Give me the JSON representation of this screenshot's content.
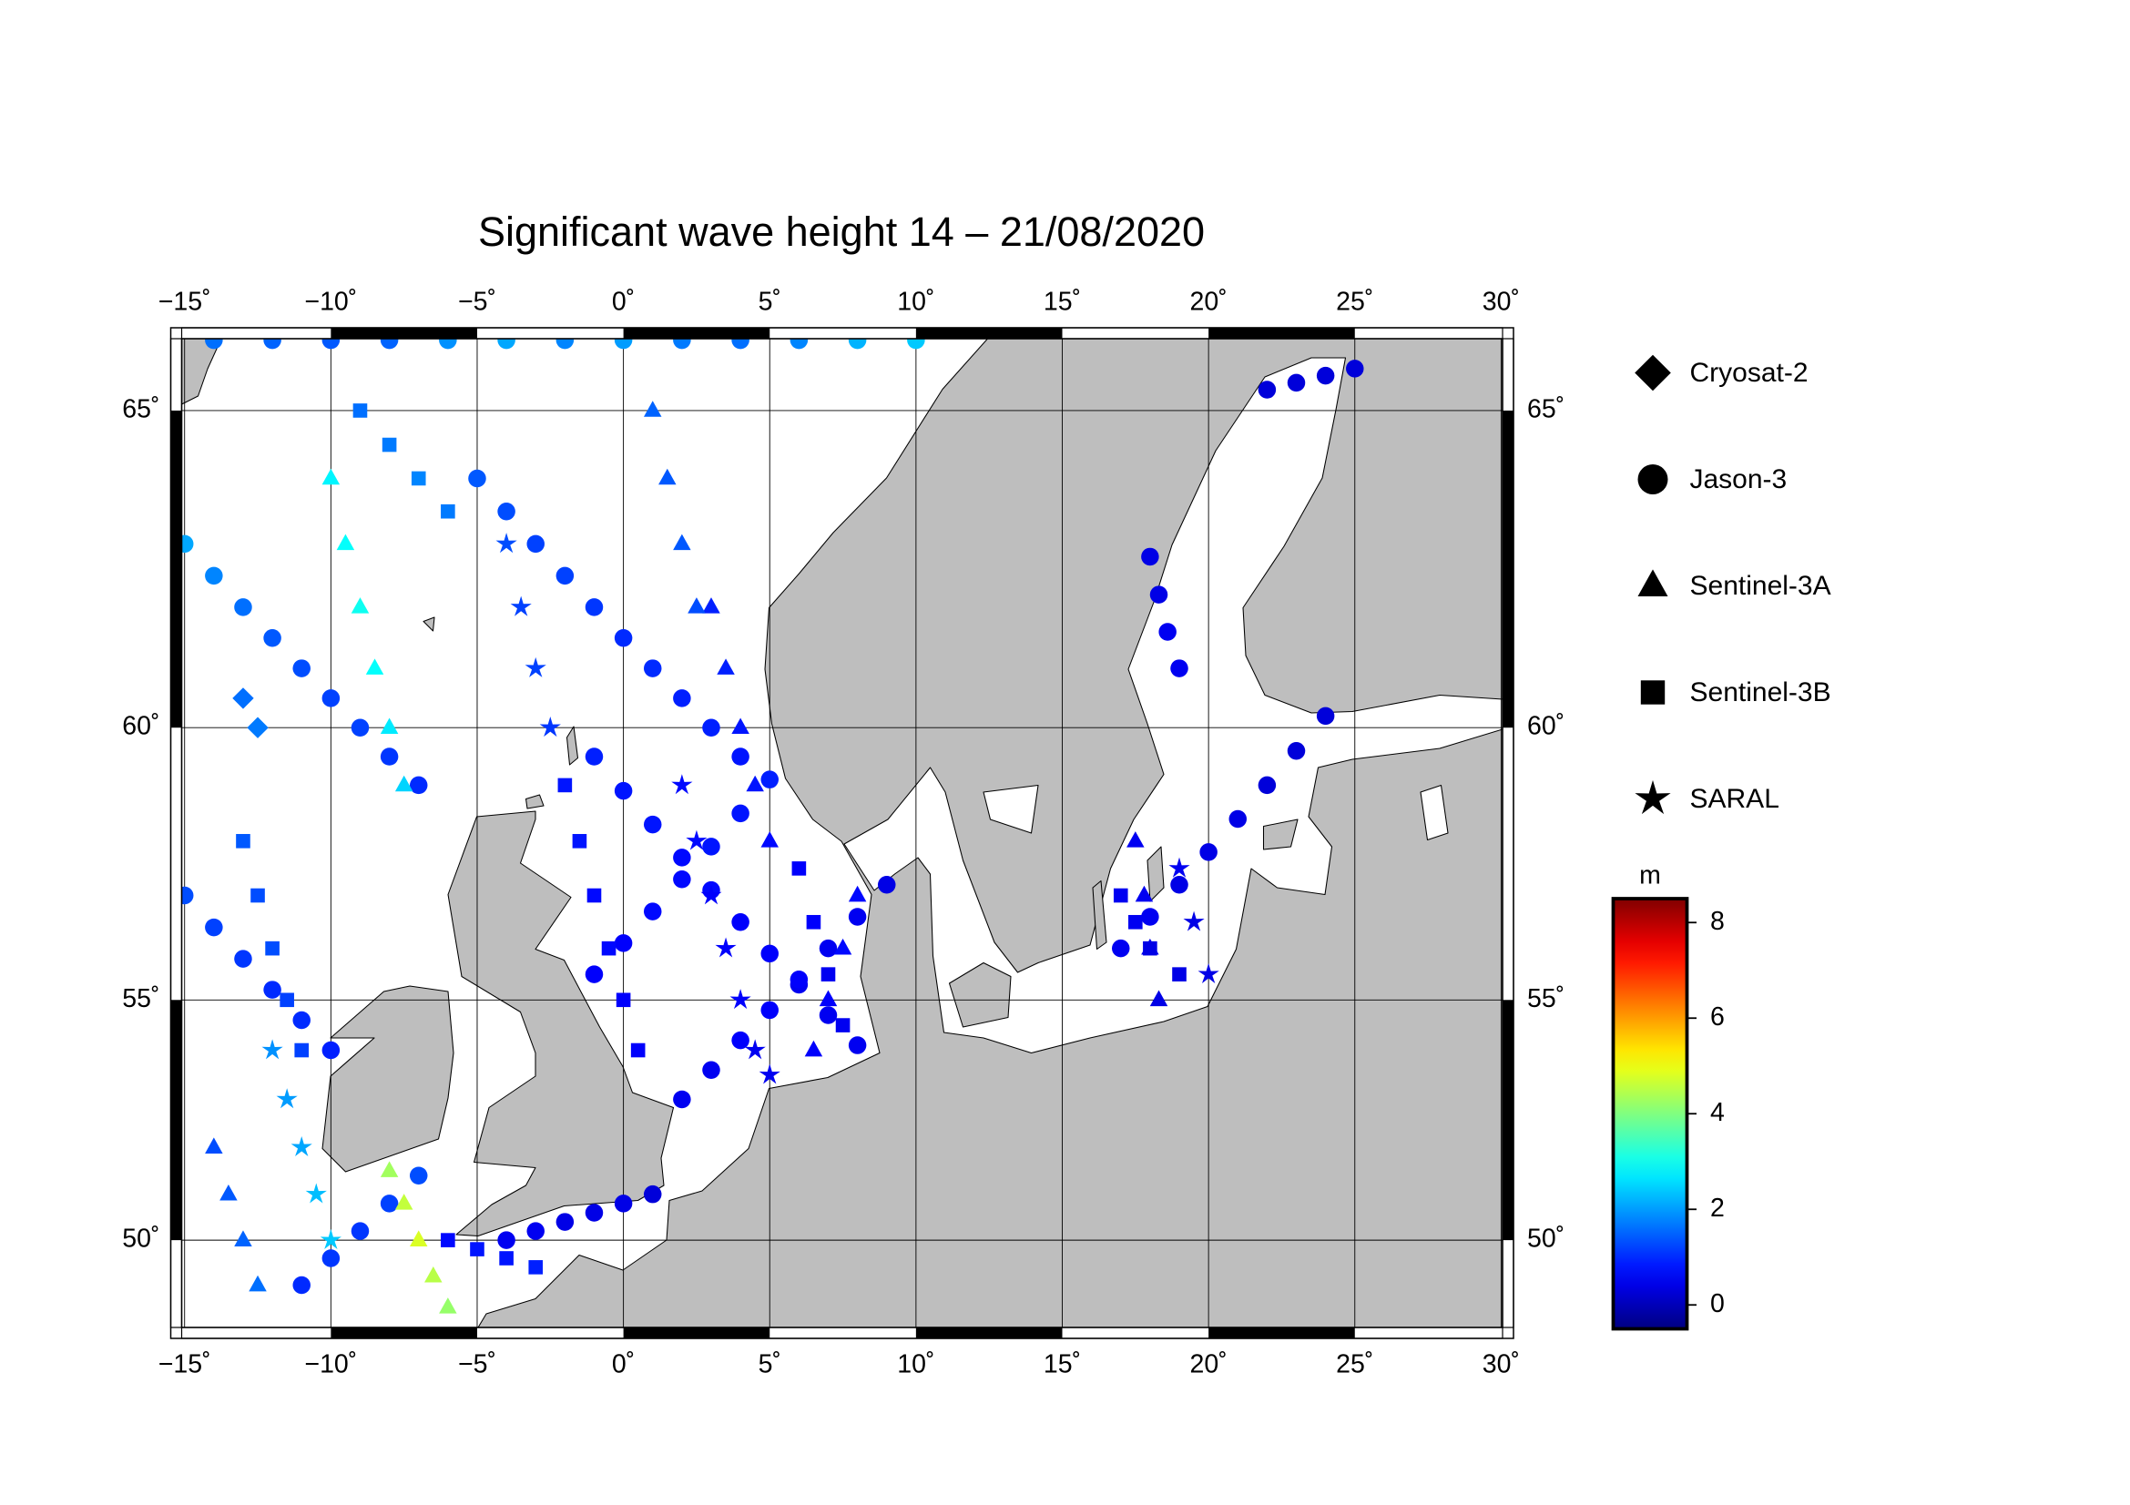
{
  "chart_data": {
    "type": "scatter-map",
    "title": "Significant wave height 14 – 21/08/2020",
    "projection": "mercator",
    "grid": true,
    "xlim": [
      -15.1,
      30.05
    ],
    "ylim": [
      48.04,
      66.02
    ],
    "xticks": [
      {
        "value": -15,
        "label": "−15˚"
      },
      {
        "value": -10,
        "label": "−10˚"
      },
      {
        "value": -5,
        "label": "−5˚"
      },
      {
        "value": 0,
        "label": "0˚"
      },
      {
        "value": 5,
        "label": "5˚"
      },
      {
        "value": 10,
        "label": "10˚"
      },
      {
        "value": 15,
        "label": "15˚"
      },
      {
        "value": 20,
        "label": "20˚"
      },
      {
        "value": 25,
        "label": "25˚"
      },
      {
        "value": 30,
        "label": "30˚"
      }
    ],
    "yticks": [
      {
        "value": 50,
        "label": "50˚"
      },
      {
        "value": 55,
        "label": "55˚"
      },
      {
        "value": 60,
        "label": "60˚"
      },
      {
        "value": 65,
        "label": "65˚"
      }
    ],
    "colorbar": {
      "label": "m",
      "colormap": "jet",
      "lim": [
        -0.5,
        8.5
      ],
      "ticks": [
        0,
        2,
        4,
        6,
        8
      ]
    },
    "series": [
      {
        "name": "Cryosat-2",
        "marker": "diamond",
        "x": [
          -13,
          -12.5
        ],
        "y": [
          60.5,
          60
        ],
        "values": [
          1.6,
          1.7
        ]
      },
      {
        "name": "Jason-3",
        "marker": "circle",
        "x": [
          -14,
          -12,
          -10,
          -8,
          -6,
          -4,
          -2,
          0,
          2,
          4,
          6,
          8,
          10,
          -15,
          -14,
          -13,
          -12,
          -11,
          -10,
          -9,
          -8,
          -7,
          -5,
          -4,
          -3,
          -2,
          -1,
          0,
          1,
          2,
          3,
          4,
          -15,
          -14,
          -13,
          -12,
          -11,
          -10,
          -1,
          0,
          1,
          2,
          3,
          4,
          5,
          6,
          7,
          8,
          -1,
          0,
          1,
          2,
          3,
          4,
          5,
          2,
          3,
          4,
          5,
          6,
          7,
          8,
          9,
          17,
          18,
          19,
          20,
          21,
          22,
          23,
          24,
          18,
          18.3,
          18.6,
          19,
          22,
          23,
          24,
          25,
          -4,
          -3,
          -2,
          -1,
          0,
          1,
          -11,
          -10,
          -9,
          -8,
          -7
        ],
        "y": [
          66,
          66,
          66,
          66,
          66,
          66,
          66,
          66,
          66,
          66,
          66,
          66,
          66,
          63,
          62.5,
          62,
          61.5,
          61,
          60.5,
          60,
          59.5,
          59,
          64,
          63.5,
          63,
          62.5,
          62,
          61.5,
          61,
          60.5,
          60,
          59.5,
          57,
          56.4,
          55.8,
          55.2,
          54.6,
          54,
          59.5,
          58.9,
          58.3,
          57.7,
          57.1,
          56.5,
          55.9,
          55.3,
          54.7,
          54.1,
          55.5,
          56.1,
          56.7,
          57.3,
          57.9,
          58.5,
          59.1,
          53,
          53.6,
          54.2,
          54.8,
          55.4,
          56,
          56.6,
          57.2,
          56,
          56.6,
          57.2,
          57.8,
          58.4,
          59,
          59.6,
          60.2,
          62.8,
          62.2,
          61.6,
          61,
          65.3,
          65.4,
          65.5,
          65.6,
          50,
          50.2,
          50.4,
          50.6,
          50.8,
          51,
          49,
          49.6,
          50.2,
          50.8,
          51.4
        ],
        "values": [
          1.6,
          1.5,
          1.4,
          1.5,
          1.9,
          2.1,
          1.8,
          2.0,
          1.7,
          1.6,
          1.8,
          2.2,
          2.4,
          2.1,
          1.8,
          1.6,
          1.4,
          1.3,
          1.2,
          1.2,
          1.1,
          1.0,
          1.4,
          1.3,
          1.2,
          1.2,
          1.1,
          1.0,
          1.0,
          0.9,
          0.9,
          0.8,
          1.3,
          1.2,
          1.1,
          1.0,
          1.0,
          0.9,
          0.9,
          0.8,
          0.8,
          0.7,
          0.7,
          0.6,
          0.6,
          0.5,
          0.5,
          0.5,
          0.6,
          0.6,
          0.7,
          0.7,
          0.8,
          0.8,
          0.9,
          0.5,
          0.5,
          0.6,
          0.6,
          0.6,
          0.5,
          0.5,
          0.4,
          0.5,
          0.5,
          0.4,
          0.4,
          0.4,
          0.3,
          0.3,
          0.3,
          0.4,
          0.4,
          0.5,
          0.5,
          0.3,
          0.3,
          0.3,
          0.3,
          0.5,
          0.5,
          0.4,
          0.4,
          0.4,
          0.3,
          1.0,
          1.1,
          1.1,
          1.2,
          1.3
        ]
      },
      {
        "name": "Sentinel-3A",
        "marker": "triangle",
        "x": [
          -10,
          -9.5,
          -9,
          -8.5,
          -8,
          -7.5,
          -8,
          -7.5,
          -7,
          -6.5,
          -6,
          3,
          3.5,
          4,
          4.5,
          5,
          8,
          7.5,
          7,
          6.5,
          -14,
          -13.5,
          -13,
          -12.5,
          17.5,
          17.8,
          18,
          18.3,
          1,
          1.5,
          2,
          2.5
        ],
        "y": [
          64,
          63,
          62,
          61,
          60,
          59,
          51.5,
          50.8,
          50,
          49.2,
          48.5,
          62,
          61,
          60,
          59,
          58,
          57,
          56,
          55,
          54,
          52,
          51,
          50,
          49,
          58,
          57,
          56,
          55,
          65,
          64,
          63,
          62
        ],
        "values": [
          2.8,
          2.9,
          3.0,
          2.9,
          2.7,
          2.5,
          4.3,
          4.6,
          4.8,
          4.5,
          4.2,
          0.9,
          0.9,
          0.8,
          0.8,
          0.7,
          0.7,
          0.7,
          0.6,
          0.6,
          1.3,
          1.4,
          1.5,
          1.6,
          0.5,
          0.5,
          0.5,
          0.4,
          1.5,
          1.4,
          1.4,
          1.3
        ]
      },
      {
        "name": "Sentinel-3B",
        "marker": "square",
        "x": [
          -2,
          -1.5,
          -1,
          -0.5,
          0,
          0.5,
          6,
          6.5,
          7,
          7.5,
          -13,
          -12.5,
          -12,
          -11.5,
          -11,
          -6,
          -5,
          -4,
          -3,
          17,
          17.5,
          18,
          19,
          -9,
          -8,
          -7,
          -6
        ],
        "y": [
          59,
          58,
          57,
          56,
          55,
          54,
          57.5,
          56.5,
          55.5,
          54.5,
          58,
          57,
          56,
          55,
          54,
          50,
          49.8,
          49.6,
          49.4,
          57,
          56.5,
          56,
          55.5,
          65,
          64.5,
          64,
          63.5
        ],
        "values": [
          0.8,
          0.8,
          0.7,
          0.7,
          0.6,
          0.6,
          0.6,
          0.6,
          0.5,
          0.5,
          1.4,
          1.3,
          1.3,
          1.2,
          1.2,
          0.7,
          0.8,
          0.8,
          0.9,
          0.5,
          0.5,
          0.4,
          0.4,
          1.6,
          1.7,
          1.8,
          1.7
        ]
      },
      {
        "name": "SARAL",
        "marker": "star",
        "x": [
          2,
          2.5,
          3,
          3.5,
          4,
          4.5,
          5,
          -12,
          -11.5,
          -11,
          -10.5,
          -10,
          -4,
          -3.5,
          -3,
          -2.5,
          19,
          19.5,
          20
        ],
        "y": [
          59,
          58,
          57,
          56,
          55,
          54,
          53.5,
          54,
          53,
          52,
          51,
          50,
          63,
          62,
          61,
          60,
          57.5,
          56.5,
          55.5
        ],
        "values": [
          0.7,
          0.7,
          0.6,
          0.6,
          0.6,
          0.5,
          0.5,
          1.9,
          2.0,
          2.1,
          2.3,
          2.4,
          1.3,
          1.2,
          1.2,
          1.1,
          0.5,
          0.4,
          0.4
        ]
      }
    ]
  }
}
